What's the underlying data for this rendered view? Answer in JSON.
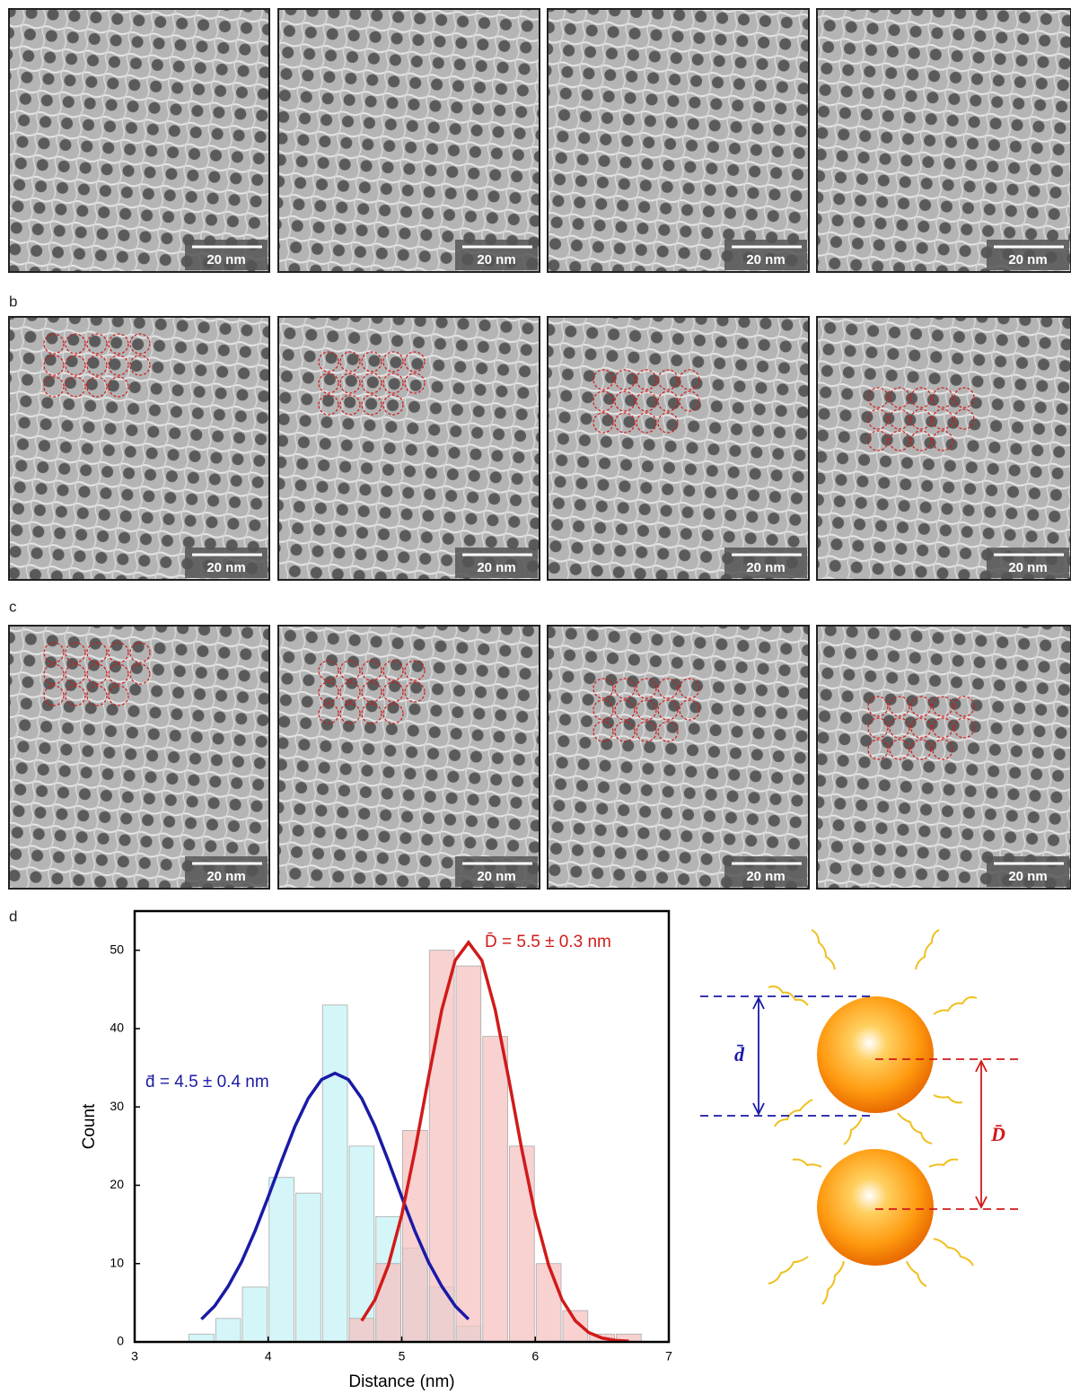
{
  "panel_labels": [
    "b",
    "c",
    "d"
  ],
  "scale_bar_label": "20 nm",
  "chart_data": {
    "type": "histogram",
    "xlabel": "Distance (nm)",
    "ylabel": "Count",
    "xlim": [
      3,
      7
    ],
    "xticks": [
      3,
      4,
      5,
      6,
      7
    ],
    "ylim": [
      0,
      55
    ],
    "yticks": [
      0,
      10,
      20,
      30,
      40,
      50
    ],
    "series": [
      {
        "color": "#c6f3f6",
        "bins": [
          3.4,
          3.6,
          3.8,
          4.0,
          4.2,
          4.4,
          4.6,
          4.8,
          5.0,
          5.2,
          5.4,
          5.6
        ],
        "values": [
          1,
          3,
          7,
          21,
          19,
          43,
          25,
          16,
          12,
          7,
          2
        ]
      },
      {
        "color": "#f6c2c2",
        "bins": [
          4.6,
          4.8,
          5.0,
          5.2,
          5.4,
          5.6,
          5.8,
          6.0,
          6.2,
          6.4,
          6.6,
          6.8
        ],
        "values": [
          3,
          10,
          27,
          50,
          48,
          39,
          25,
          10,
          4,
          1,
          1
        ]
      }
    ],
    "fits": [
      {
        "color": "#1a1aa6",
        "x": [
          3.5,
          3.6,
          3.7,
          3.8,
          3.9,
          4.0,
          4.1,
          4.2,
          4.3,
          4.4,
          4.5,
          4.6,
          4.7,
          4.8,
          4.9,
          5.0,
          5.1,
          5.2,
          5.3,
          5.4,
          5.5
        ],
        "values": [
          2.9,
          4.6,
          7.1,
          10.2,
          14.1,
          18.5,
          23.1,
          27.5,
          31.1,
          33.5,
          34.3,
          33.5,
          31.1,
          27.5,
          23.1,
          18.5,
          14.1,
          10.2,
          7.1,
          4.6,
          2.9
        ]
      },
      {
        "color": "#d11a1a",
        "x": [
          4.7,
          4.8,
          4.9,
          5.0,
          5.1,
          5.2,
          5.3,
          5.4,
          5.5,
          5.6,
          5.7,
          5.8,
          5.9,
          6.0,
          6.1,
          6.2,
          6.3,
          6.4,
          6.5,
          6.6,
          6.7
        ],
        "values": [
          2.7,
          5.4,
          9.8,
          16.2,
          24.5,
          33.7,
          42.4,
          48.7,
          51,
          48.7,
          42.4,
          33.7,
          24.5,
          16.2,
          9.8,
          5.4,
          2.7,
          1.2,
          0.5,
          0.2,
          0.1
        ]
      }
    ],
    "annotations": [
      {
        "text": "d̄ = 4.5 ± 0.4 nm",
        "color": "#1a1aa6"
      },
      {
        "text": "D̄ = 5.5 ± 0.3 nm",
        "color": "#d11a1a"
      }
    ]
  },
  "schematic": {
    "labels": [
      "d̄",
      "D̄"
    ]
  }
}
